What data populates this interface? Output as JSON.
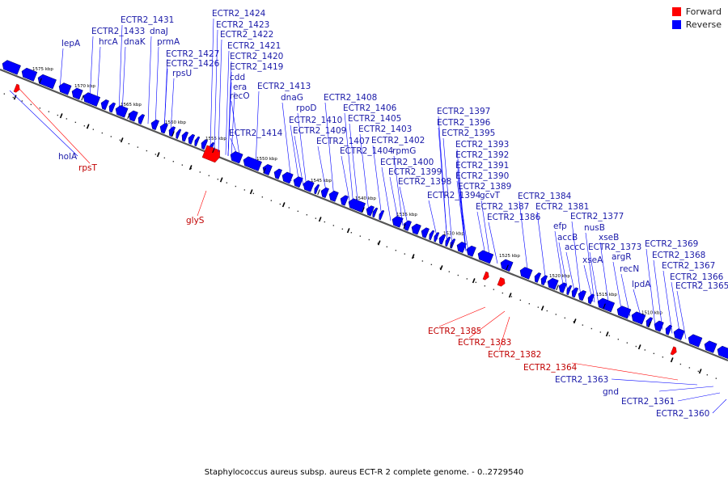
{
  "colors": {
    "forward": "#ff0000",
    "reverse": "#0000ff",
    "forward_label": "#c00000",
    "reverse_label": "#1a1aa8",
    "backbone": "#555555"
  },
  "legend": [
    {
      "label": "Forward",
      "color": "#ff0000"
    },
    {
      "label": "Reverse",
      "color": "#0000ff"
    }
  ],
  "caption": "Staphylococcus aureus subsp. aureus ECT-R 2 complete genome. - 0..2729540",
  "ticks": [
    "1575 kbp",
    "1570 kbp",
    "1565 kbp",
    "1560 kbp",
    "1555 kbp",
    "1550 kbp",
    "1545 kbp",
    "1540 kbp",
    "1535 kbp",
    "1530 kbp",
    "1525 kbp",
    "1520 kbp",
    "1515 kbp",
    "1510 kbp"
  ],
  "reverse_genes": [
    "lepA",
    "ECTR2_1433",
    "hrcA",
    "ECTR2_1431",
    "dnaK",
    "dnaJ",
    "prmA",
    "ECTR2_1427",
    "ECTR2_1426",
    "rpsU",
    "ECTR2_1424",
    "ECTR2_1423",
    "ECTR2_1422",
    "ECTR2_1421",
    "ECTR2_1420",
    "ECTR2_1419",
    "cdd",
    "era",
    "recO",
    "ECTR2_1414",
    "ECTR2_1413",
    "dnaG",
    "rpoD",
    "ECTR2_1410",
    "ECTR2_1409",
    "ECTR2_1408",
    "ECTR2_1407",
    "ECTR2_1406",
    "ECTR2_1405",
    "ECTR2_1404",
    "ECTR2_1403",
    "ECTR2_1402",
    "rpmG",
    "ECTR2_1400",
    "ECTR2_1399",
    "ECTR2_1398",
    "ECTR2_1397",
    "ECTR2_1396",
    "ECTR2_1395",
    "ECTR2_1394",
    "ECTR2_1393",
    "ECTR2_1392",
    "ECTR2_1391",
    "ECTR2_1390",
    "ECTR2_1389",
    "gcvT",
    "ECTR2_1387",
    "ECTR2_1386",
    "ECTR2_1384",
    "efp",
    "ECTR2_1381",
    "accB",
    "accC",
    "nusB",
    "ECTR2_1377",
    "xseA",
    "xseB",
    "ECTR2_1373",
    "argR",
    "recN",
    "lpdA",
    "ECTR2_1369",
    "ECTR2_1368",
    "ECTR2_1367",
    "ECTR2_1366",
    "ECTR2_1365"
  ],
  "lower_reverse_genes": [
    "holA",
    "ECTR2_1363",
    "gnd",
    "ECTR2_1361",
    "ECTR2_1360"
  ],
  "forward_genes": [
    "rpsT",
    "glyS",
    "ECTR2_1385",
    "ECTR2_1383",
    "ECTR2_1382",
    "ECTR2_1364"
  ]
}
